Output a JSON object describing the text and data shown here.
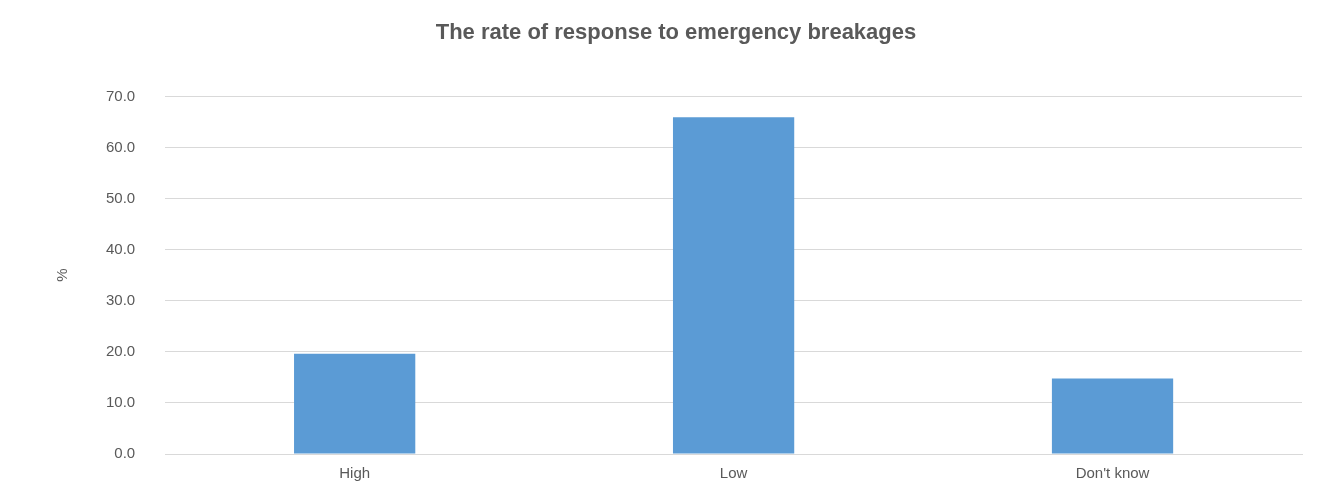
{
  "chart_data": {
    "type": "bar",
    "title": "The rate of response to emergency breakages",
    "ylabel": "%",
    "categories": [
      "High",
      "Low",
      "Don't know"
    ],
    "values": [
      19.6,
      65.9,
      14.8
    ],
    "color": "#5b9bd5",
    "ylim": [
      0,
      70
    ],
    "yticks": [
      {
        "value": 0,
        "label": "0.0"
      },
      {
        "value": 10,
        "label": "10.0"
      },
      {
        "value": 20,
        "label": "20.0"
      },
      {
        "value": 30,
        "label": "30.0"
      },
      {
        "value": 40,
        "label": "40.0"
      },
      {
        "value": 50,
        "label": "50.0"
      },
      {
        "value": 60,
        "label": "60.0"
      },
      {
        "value": 70,
        "label": "70.0"
      }
    ],
    "grid": "y"
  }
}
